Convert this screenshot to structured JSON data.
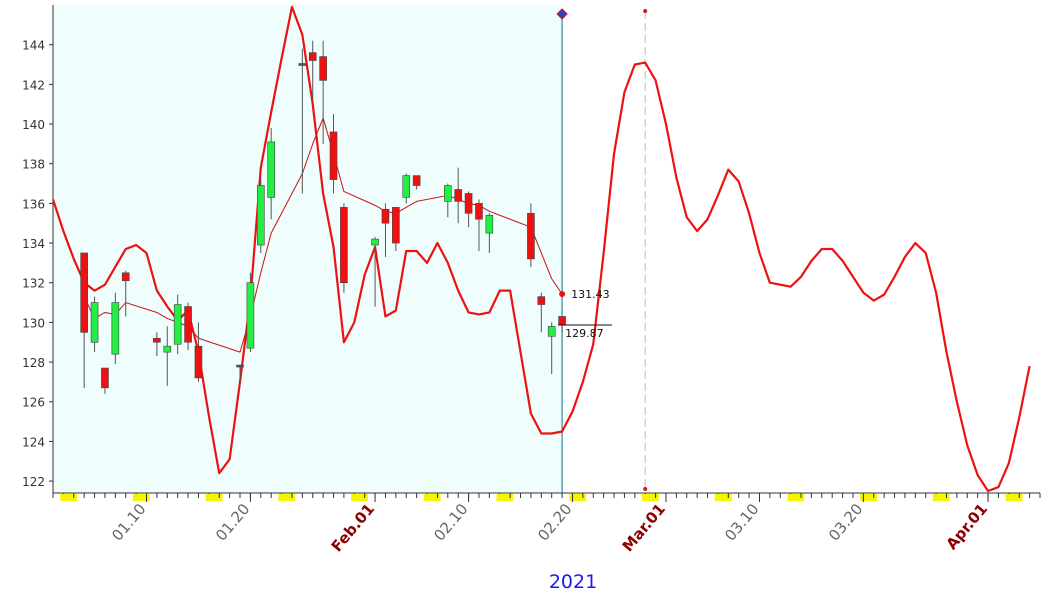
{
  "chart_data": {
    "type": "candlestick",
    "xlabel": "2021",
    "xlim": [
      "2021-01-01",
      "2021-04-06"
    ],
    "ylim": [
      121.4,
      146
    ],
    "yticks": [
      122,
      124,
      126,
      128,
      130,
      132,
      134,
      136,
      138,
      140,
      142,
      144
    ],
    "xticks": [
      {
        "value": "2021-01-10",
        "label": "01.10"
      },
      {
        "value": "2021-01-20",
        "label": "01.20"
      },
      {
        "value": "2021-02-01",
        "label": "Feb.01"
      },
      {
        "value": "2021-02-10",
        "label": "02.10"
      },
      {
        "value": "2021-02-20",
        "label": "02.20"
      },
      {
        "value": "2021-03-01",
        "label": "Mar.01"
      },
      {
        "value": "2021-03-10",
        "label": "03.10"
      },
      {
        "value": "2021-03-20",
        "label": "03.20"
      },
      {
        "value": "2021-04-01",
        "label": "Apr.01"
      }
    ],
    "current_date": "2021-02-19",
    "projection_line_date": "2021-02-27",
    "candles": {
      "up_color": "#22ee44",
      "down_color": "#ee1111",
      "x": [
        "2021-01-04",
        "2021-01-05",
        "2021-01-06",
        "2021-01-07",
        "2021-01-08",
        "2021-01-11",
        "2021-01-12",
        "2021-01-13",
        "2021-01-14",
        "2021-01-15",
        "2021-01-19",
        "2021-01-20",
        "2021-01-21",
        "2021-01-22",
        "2021-01-25",
        "2021-01-26",
        "2021-01-27",
        "2021-01-28",
        "2021-01-29",
        "2021-02-01",
        "2021-02-02",
        "2021-02-03",
        "2021-02-04",
        "2021-02-05",
        "2021-02-08",
        "2021-02-09",
        "2021-02-10",
        "2021-02-11",
        "2021-02-12",
        "2021-02-16",
        "2021-02-17",
        "2021-02-18",
        "2021-02-19"
      ],
      "open": [
        133.5,
        129,
        127.7,
        128.4,
        132.5,
        129.2,
        128.5,
        128.9,
        130.8,
        128.8,
        127.8,
        128.7,
        133.9,
        136.3,
        143,
        143.6,
        143.4,
        139.6,
        135.8,
        133.9,
        135.7,
        135.8,
        136.3,
        137.4,
        136.1,
        136.7,
        136.5,
        136,
        134.5,
        135.5,
        131.3,
        129.3,
        130.3
      ],
      "high": [
        133.5,
        131.3,
        127.7,
        131.5,
        132.6,
        129.5,
        129.8,
        131.4,
        131,
        130,
        127.8,
        132.5,
        137.3,
        139.8,
        143.8,
        144.2,
        144.2,
        140.5,
        136,
        134.3,
        136,
        135.8,
        137.5,
        137.4,
        137,
        137.8,
        136.6,
        136.2,
        135.5,
        136,
        131.5,
        130,
        130.3
      ],
      "low": [
        126.7,
        128.5,
        126.4,
        127.9,
        130.3,
        128.3,
        126.8,
        128.4,
        128.6,
        127,
        126.8,
        128.5,
        133.5,
        135.2,
        136.5,
        141.2,
        139,
        136.5,
        131.5,
        130.8,
        133.3,
        133.6,
        136,
        136.7,
        135.3,
        135,
        134.8,
        133.6,
        133.5,
        132.8,
        129.5,
        127.4,
        129.5
      ],
      "close": [
        129.5,
        131,
        126.7,
        131,
        132.1,
        129,
        128.8,
        130.9,
        129,
        127.2,
        127.8,
        132,
        136.9,
        139.1,
        143,
        143.2,
        142.2,
        137.2,
        132,
        134.2,
        135,
        134,
        137.4,
        136.9,
        136.9,
        136.1,
        135.5,
        135.2,
        135.4,
        133.2,
        130.9,
        129.8,
        129.87
      ]
    },
    "series": [
      {
        "color": "#cc1111",
        "width": 1,
        "x": [
          "2021-01-04",
          "2021-01-05",
          "2021-01-06",
          "2021-01-07",
          "2021-01-08",
          "2021-01-11",
          "2021-01-12",
          "2021-01-13",
          "2021-01-14",
          "2021-01-15",
          "2021-01-19",
          "2021-01-20",
          "2021-01-21",
          "2021-01-22",
          "2021-01-25",
          "2021-01-26",
          "2021-01-27",
          "2021-01-28",
          "2021-01-29",
          "2021-02-01",
          "2021-02-02",
          "2021-02-03",
          "2021-02-04",
          "2021-02-05",
          "2021-02-08",
          "2021-02-09",
          "2021-02-10",
          "2021-02-11",
          "2021-02-12",
          "2021-02-16",
          "2021-02-17",
          "2021-02-18",
          "2021-02-19"
        ],
        "values": [
          131.3,
          130.2,
          130.5,
          130.4,
          131,
          130.5,
          130.2,
          130,
          129.8,
          129.2,
          128.5,
          130.3,
          132.5,
          134.5,
          137.5,
          139,
          140.3,
          138.5,
          136.6,
          135.9,
          135.6,
          135.5,
          135.8,
          136.1,
          136.4,
          136.2,
          136,
          135.9,
          135.6,
          134.8,
          133.5,
          132.2,
          131.43
        ]
      },
      {
        "color": "#ee1111",
        "width": 2.2,
        "x": [
          "2021-01-01",
          "2021-01-02",
          "2021-01-03",
          "2021-01-04",
          "2021-01-05",
          "2021-01-06",
          "2021-01-07",
          "2021-01-08",
          "2021-01-09",
          "2021-01-10",
          "2021-01-11",
          "2021-01-12",
          "2021-01-13",
          "2021-01-14",
          "2021-01-15",
          "2021-01-16",
          "2021-01-17",
          "2021-01-18",
          "2021-01-19",
          "2021-01-20",
          "2021-01-21",
          "2021-01-22",
          "2021-01-23",
          "2021-01-24",
          "2021-01-25",
          "2021-01-26",
          "2021-01-27",
          "2021-01-28",
          "2021-01-29",
          "2021-01-30",
          "2021-01-31",
          "2021-02-01",
          "2021-02-02",
          "2021-02-03",
          "2021-02-04",
          "2021-02-05",
          "2021-02-06",
          "2021-02-07",
          "2021-02-08",
          "2021-02-09",
          "2021-02-10",
          "2021-02-11",
          "2021-02-12",
          "2021-02-13",
          "2021-02-14",
          "2021-02-15",
          "2021-02-16",
          "2021-02-17",
          "2021-02-18",
          "2021-02-19",
          "2021-02-20",
          "2021-02-21",
          "2021-02-22",
          "2021-02-23",
          "2021-02-24",
          "2021-02-25",
          "2021-02-26",
          "2021-02-27",
          "2021-02-28",
          "2021-03-01",
          "2021-03-02",
          "2021-03-03",
          "2021-03-04",
          "2021-03-05",
          "2021-03-06",
          "2021-03-07",
          "2021-03-08",
          "2021-03-09",
          "2021-03-10",
          "2021-03-11",
          "2021-03-12",
          "2021-03-13",
          "2021-03-14",
          "2021-03-15",
          "2021-03-16",
          "2021-03-17",
          "2021-03-18",
          "2021-03-19",
          "2021-03-20",
          "2021-03-21",
          "2021-03-22",
          "2021-03-23",
          "2021-03-24",
          "2021-03-25",
          "2021-03-26",
          "2021-03-27",
          "2021-03-28",
          "2021-03-29",
          "2021-03-30",
          "2021-03-31",
          "2021-04-01",
          "2021-04-02",
          "2021-04-03",
          "2021-04-04",
          "2021-04-05"
        ],
        "values": [
          136.2,
          134.6,
          133.2,
          132,
          131.6,
          131.9,
          132.8,
          133.7,
          133.9,
          133.5,
          131.6,
          130.8,
          130.1,
          130.6,
          128.5,
          125.3,
          122.4,
          123.1,
          127,
          131.2,
          137.8,
          140.6,
          143.3,
          145.9,
          144.5,
          141,
          136.5,
          133.8,
          129,
          130,
          132.4,
          133.8,
          130.3,
          130.6,
          133.6,
          133.6,
          133,
          134,
          133,
          131.6,
          130.5,
          130.4,
          130.5,
          131.6,
          131.6,
          128.5,
          125.4,
          124.4,
          124.4,
          124.5,
          125.5,
          127,
          128.9,
          133.5,
          138.5,
          141.6,
          143,
          143.1,
          142.2,
          140,
          137.3,
          135.3,
          134.6,
          135.2,
          136.4,
          137.7,
          137.1,
          135.5,
          133.5,
          132,
          131.9,
          131.8,
          132.3,
          133.1,
          133.7,
          133.7,
          133.1,
          132.3,
          131.5,
          131.1,
          131.4,
          132.3,
          133.3,
          134,
          133.5,
          131.5,
          128.5,
          126,
          123.8,
          122.3,
          121.5,
          121.7,
          122.9,
          125.2,
          127.8
        ]
      }
    ]
  }
}
